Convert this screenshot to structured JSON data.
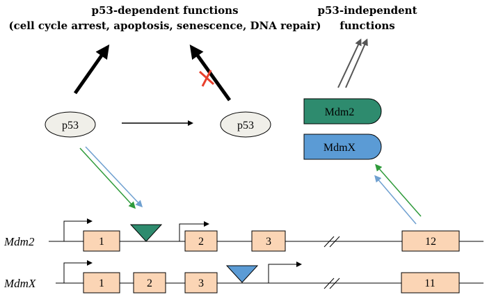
{
  "titles": {
    "dependent_line1": "p53-dependent functions",
    "dependent_line2": "(cell cycle arrest, apoptosis, senescence, DNA repair)",
    "independent_line1": "p53-independent",
    "independent_line2": "functions"
  },
  "nodes": {
    "p53_left": "p53",
    "p53_right": "p53",
    "mdm2_protein": "Mdm2",
    "mdmx_protein": "MdmX"
  },
  "genes": {
    "mdm2": {
      "name": "Mdm2",
      "exons": [
        "1",
        "2",
        "3",
        "12"
      ]
    },
    "mdmx": {
      "name": "MdmX",
      "exons": [
        "1",
        "2",
        "3",
        "11"
      ]
    }
  },
  "colors": {
    "mdm2": "#2e8b6e",
    "mdmx": "#5b9bd5",
    "exon_fill": "#fbd5b5",
    "p53_fill": "#f0efe9",
    "inhibit_mark": "#e8402c",
    "green_arrow": "#2e9a3a",
    "blue_arrow": "#6fa0d0",
    "gray_arrow": "#555555"
  }
}
